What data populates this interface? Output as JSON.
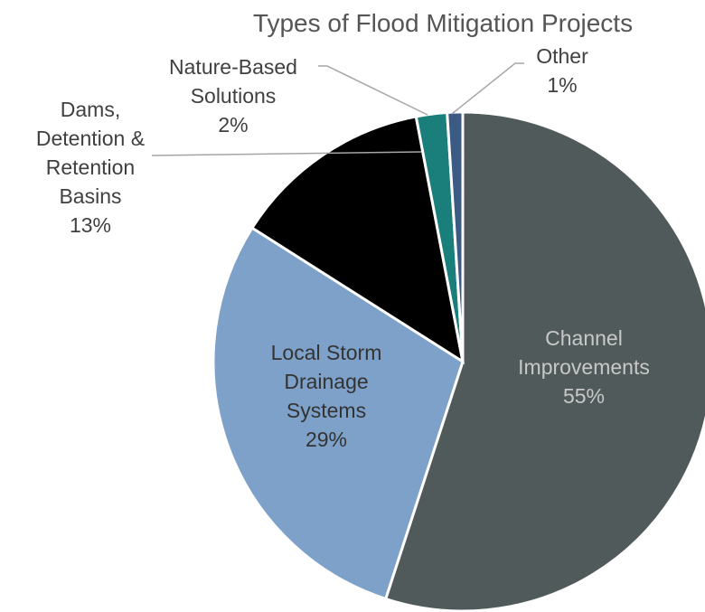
{
  "chart_data": {
    "type": "pie",
    "title": "Types of Flood Mitigation Projects",
    "categories": [
      "Channel Improvements",
      "Local Storm Drainage Systems",
      "Dams, Detention & Retention Basins",
      "Nature-Based Solutions",
      "Other"
    ],
    "values": [
      55,
      29,
      13,
      2,
      1
    ],
    "value_labels": [
      "55%",
      "29%",
      "13%",
      "2%",
      "1%"
    ],
    "colors": [
      "#515a5a",
      "#7ea1c9",
      "#000000",
      "#1a7f7a",
      "#3b5b85"
    ]
  }
}
